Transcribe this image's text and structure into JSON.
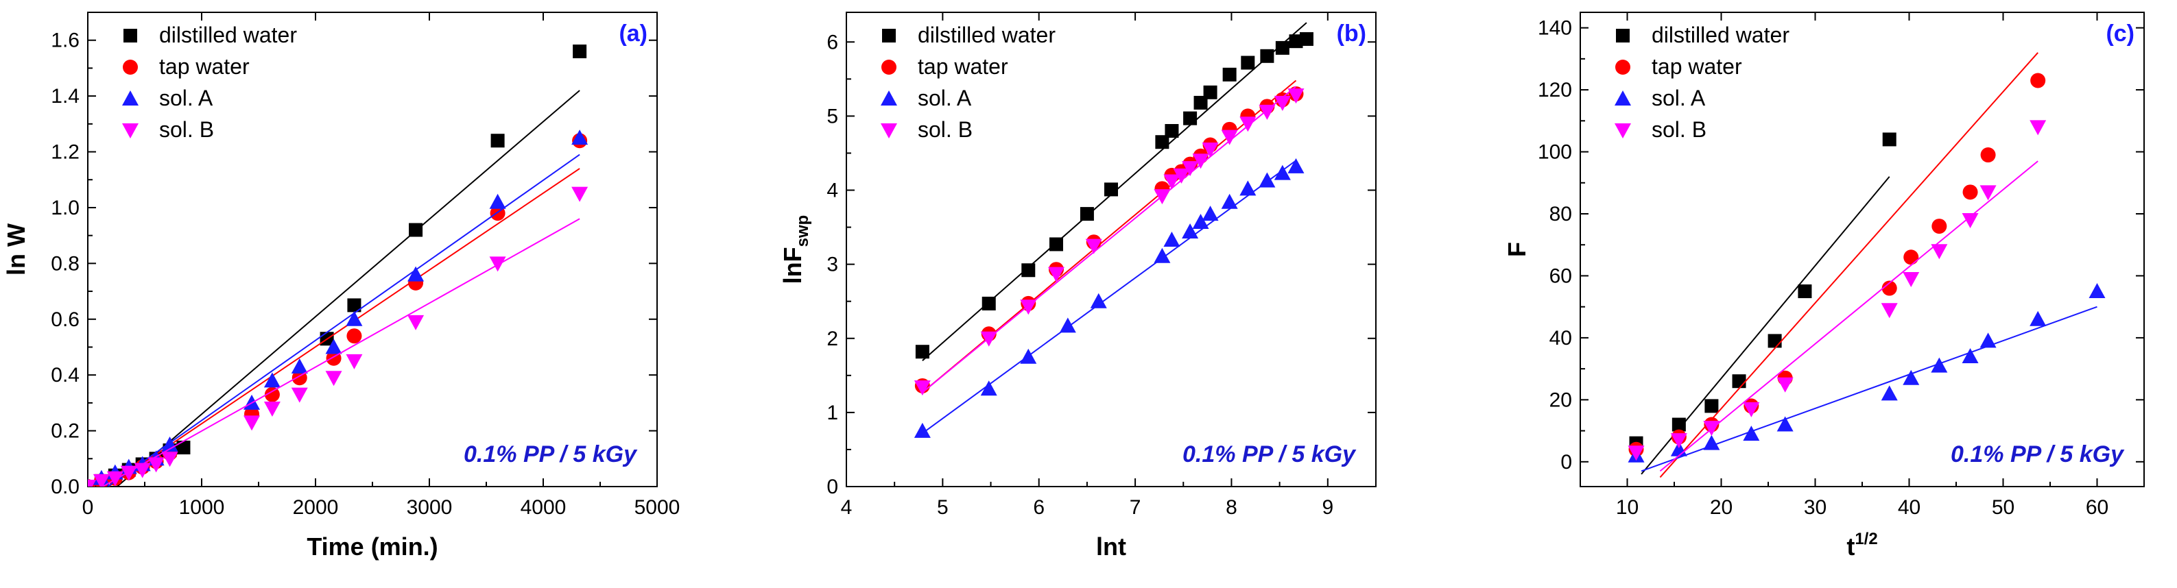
{
  "colors": {
    "black": "#000000",
    "red": "#ff0000",
    "blue": "#1a1aff",
    "magenta": "#ff00ff",
    "accent_text": "#1a1acc"
  },
  "chart_data": [
    {
      "type": "scatter",
      "panel_label": "(a)",
      "xlabel": "Time (min.)",
      "ylabel": "ln W",
      "xlim": [
        0,
        5000
      ],
      "ylim": [
        0,
        1.7
      ],
      "xticks": [
        0,
        1000,
        2000,
        3000,
        4000,
        5000
      ],
      "yticks": [
        0.0,
        0.2,
        0.4,
        0.6,
        0.8,
        1.0,
        1.2,
        1.4,
        1.6
      ],
      "ytick_labels": [
        "0.0",
        "0.2",
        "0.4",
        "0.6",
        "0.8",
        "1.0",
        "1.2",
        "1.4",
        "1.6"
      ],
      "legend_position": "top-left",
      "annotation": "0.1% PP / 5 kGy",
      "series": [
        {
          "name": "dilstilled water",
          "marker": "square",
          "color": "#000000",
          "points": [
            [
              0,
              0
            ],
            [
              120,
              0.02
            ],
            [
              240,
              0.04
            ],
            [
              360,
              0.06
            ],
            [
              480,
              0.08
            ],
            [
              600,
              0.1
            ],
            [
              720,
              0.13
            ],
            [
              840,
              0.14
            ],
            [
              2100,
              0.53
            ],
            [
              2340,
              0.65
            ],
            [
              2880,
              0.92
            ],
            [
              3600,
              1.24
            ],
            [
              4320,
              1.56
            ]
          ],
          "fit": [
            [
              0,
              -0.09
            ],
            [
              4320,
              1.42
            ]
          ]
        },
        {
          "name": "tap water",
          "marker": "circle",
          "color": "#ff0000",
          "points": [
            [
              0,
              0
            ],
            [
              120,
              0.02
            ],
            [
              240,
              0.03
            ],
            [
              360,
              0.05
            ],
            [
              480,
              0.07
            ],
            [
              600,
              0.09
            ],
            [
              720,
              0.12
            ],
            [
              1440,
              0.26
            ],
            [
              1620,
              0.33
            ],
            [
              1860,
              0.39
            ],
            [
              2160,
              0.46
            ],
            [
              2340,
              0.54
            ],
            [
              2880,
              0.73
            ],
            [
              3600,
              0.98
            ],
            [
              4320,
              1.24
            ]
          ],
          "fit": [
            [
              0,
              -0.05
            ],
            [
              4320,
              1.14
            ]
          ]
        },
        {
          "name": "sol. A",
          "marker": "triangle-up",
          "color": "#1a1aff",
          "points": [
            [
              0,
              0
            ],
            [
              120,
              0.03
            ],
            [
              240,
              0.05
            ],
            [
              360,
              0.07
            ],
            [
              480,
              0.08
            ],
            [
              600,
              0.1
            ],
            [
              720,
              0.15
            ],
            [
              1440,
              0.3
            ],
            [
              1620,
              0.38
            ],
            [
              1860,
              0.43
            ],
            [
              2160,
              0.5
            ],
            [
              2340,
              0.6
            ],
            [
              2880,
              0.76
            ],
            [
              3600,
              1.02
            ],
            [
              4320,
              1.25
            ]
          ],
          "fit": [
            [
              0,
              -0.05
            ],
            [
              4320,
              1.19
            ]
          ]
        },
        {
          "name": "sol. B",
          "marker": "triangle-down",
          "color": "#ff00ff",
          "points": [
            [
              0,
              0
            ],
            [
              120,
              0.02
            ],
            [
              240,
              0.03
            ],
            [
              360,
              0.05
            ],
            [
              480,
              0.06
            ],
            [
              600,
              0.08
            ],
            [
              720,
              0.1
            ],
            [
              1440,
              0.23
            ],
            [
              1620,
              0.28
            ],
            [
              1860,
              0.33
            ],
            [
              2160,
              0.39
            ],
            [
              2340,
              0.45
            ],
            [
              2880,
              0.59
            ],
            [
              3600,
              0.8
            ],
            [
              4320,
              1.05
            ]
          ],
          "fit": [
            [
              0,
              -0.03
            ],
            [
              4320,
              0.96
            ]
          ]
        }
      ]
    },
    {
      "type": "scatter",
      "panel_label": "(b)",
      "xlabel": "lnt",
      "ylabel": "lnF",
      "ylabel_sub": "swp",
      "xlim": [
        4,
        9.5
      ],
      "ylim": [
        0,
        6.4
      ],
      "xticks": [
        4,
        5,
        6,
        7,
        8,
        9
      ],
      "yticks": [
        0,
        1,
        2,
        3,
        4,
        5,
        6
      ],
      "legend_position": "top-left",
      "annotation": "0.1% PP / 5 kGy",
      "series": [
        {
          "name": "dilstilled water",
          "marker": "square",
          "color": "#000000",
          "points": [
            [
              4.79,
              1.82
            ],
            [
              5.48,
              2.47
            ],
            [
              5.89,
              2.92
            ],
            [
              6.18,
              3.27
            ],
            [
              6.5,
              3.68
            ],
            [
              6.75,
              4.01
            ],
            [
              7.28,
              4.65
            ],
            [
              7.38,
              4.8
            ],
            [
              7.57,
              4.97
            ],
            [
              7.68,
              5.18
            ],
            [
              7.78,
              5.32
            ],
            [
              7.98,
              5.56
            ],
            [
              8.17,
              5.72
            ],
            [
              8.37,
              5.81
            ],
            [
              8.53,
              5.92
            ],
            [
              8.67,
              6.01
            ],
            [
              8.78,
              6.04
            ]
          ],
          "fit": [
            [
              4.79,
              1.7
            ],
            [
              8.78,
              6.26
            ]
          ]
        },
        {
          "name": "tap water",
          "marker": "circle",
          "color": "#ff0000",
          "points": [
            [
              4.79,
              1.36
            ],
            [
              5.48,
              2.06
            ],
            [
              5.89,
              2.47
            ],
            [
              6.18,
              2.93
            ],
            [
              6.57,
              3.3
            ],
            [
              7.28,
              4.02
            ],
            [
              7.38,
              4.2
            ],
            [
              7.48,
              4.25
            ],
            [
              7.57,
              4.35
            ],
            [
              7.68,
              4.46
            ],
            [
              7.78,
              4.61
            ],
            [
              7.98,
              4.82
            ],
            [
              8.17,
              5.0
            ],
            [
              8.37,
              5.13
            ],
            [
              8.53,
              5.22
            ],
            [
              8.67,
              5.3
            ]
          ],
          "fit": [
            [
              4.79,
              1.27
            ],
            [
              8.67,
              5.48
            ]
          ]
        },
        {
          "name": "sol. A",
          "marker": "triangle-up",
          "color": "#1a1aff",
          "points": [
            [
              4.79,
              0.75
            ],
            [
              5.48,
              1.32
            ],
            [
              5.89,
              1.75
            ],
            [
              6.3,
              2.17
            ],
            [
              6.62,
              2.5
            ],
            [
              7.28,
              3.11
            ],
            [
              7.38,
              3.33
            ],
            [
              7.57,
              3.44
            ],
            [
              7.68,
              3.57
            ],
            [
              7.78,
              3.68
            ],
            [
              7.98,
              3.84
            ],
            [
              8.17,
              4.02
            ],
            [
              8.37,
              4.13
            ],
            [
              8.53,
              4.23
            ],
            [
              8.67,
              4.32
            ]
          ],
          "fit": [
            [
              4.79,
              0.72
            ],
            [
              8.67,
              4.4
            ]
          ]
        },
        {
          "name": "sol. B",
          "marker": "triangle-down",
          "color": "#ff00ff",
          "points": [
            [
              4.79,
              1.34
            ],
            [
              5.48,
              2.0
            ],
            [
              5.89,
              2.43
            ],
            [
              6.18,
              2.87
            ],
            [
              6.57,
              3.25
            ],
            [
              7.28,
              3.92
            ],
            [
              7.38,
              4.12
            ],
            [
              7.48,
              4.2
            ],
            [
              7.57,
              4.3
            ],
            [
              7.68,
              4.4
            ],
            [
              7.78,
              4.55
            ],
            [
              7.98,
              4.72
            ],
            [
              8.17,
              4.9
            ],
            [
              8.37,
              5.06
            ],
            [
              8.53,
              5.18
            ],
            [
              8.67,
              5.28
            ]
          ],
          "fit": [
            [
              4.79,
              1.27
            ],
            [
              8.67,
              5.4
            ]
          ]
        }
      ]
    },
    {
      "type": "scatter",
      "panel_label": "(c)",
      "xlabel": "t",
      "xlabel_sup": "1/2",
      "ylabel": "F",
      "xlim": [
        5,
        65
      ],
      "ylim": [
        -8,
        145
      ],
      "xticks": [
        10,
        20,
        30,
        40,
        50,
        60
      ],
      "yticks": [
        0,
        20,
        40,
        60,
        80,
        100,
        120,
        140
      ],
      "legend_position": "top-left",
      "annotation": "0.1% PP / 5 kGy",
      "series": [
        {
          "name": "dilstilled water",
          "marker": "square",
          "color": "#000000",
          "points": [
            [
              10.95,
              6
            ],
            [
              15.5,
              12
            ],
            [
              18.97,
              18
            ],
            [
              21.9,
              26
            ],
            [
              25.7,
              39
            ],
            [
              28.9,
              55
            ],
            [
              37.9,
              104
            ]
          ],
          "fit": [
            [
              11.5,
              -4
            ],
            [
              37.9,
              92
            ]
          ]
        },
        {
          "name": "tap water",
          "marker": "circle",
          "color": "#ff0000",
          "points": [
            [
              10.95,
              4
            ],
            [
              15.5,
              8
            ],
            [
              18.97,
              12
            ],
            [
              23.2,
              18
            ],
            [
              26.8,
              27
            ],
            [
              37.9,
              56
            ],
            [
              40.2,
              66
            ],
            [
              43.2,
              76
            ],
            [
              46.5,
              87
            ],
            [
              48.4,
              99
            ],
            [
              53.7,
              123
            ]
          ],
          "fit": [
            [
              13.5,
              -5
            ],
            [
              53.7,
              132
            ]
          ]
        },
        {
          "name": "sol. A",
          "marker": "triangle-up",
          "color": "#1a1aff",
          "points": [
            [
              10.95,
              2
            ],
            [
              15.5,
              4
            ],
            [
              18.97,
              6
            ],
            [
              23.2,
              9
            ],
            [
              26.8,
              12
            ],
            [
              37.9,
              22
            ],
            [
              40.2,
              27
            ],
            [
              43.2,
              31
            ],
            [
              46.5,
              34
            ],
            [
              48.4,
              39
            ],
            [
              53.7,
              46
            ],
            [
              60,
              55
            ]
          ],
          "fit": [
            [
              11.5,
              -3
            ],
            [
              60,
              50
            ]
          ]
        },
        {
          "name": "sol. B",
          "marker": "triangle-down",
          "color": "#ff00ff",
          "points": [
            [
              10.95,
              3
            ],
            [
              15.5,
              7
            ],
            [
              18.97,
              11
            ],
            [
              23.2,
              17
            ],
            [
              26.8,
              25
            ],
            [
              37.9,
              49
            ],
            [
              40.2,
              59
            ],
            [
              43.2,
              68
            ],
            [
              46.5,
              78
            ],
            [
              48.4,
              87
            ],
            [
              53.7,
              108
            ]
          ],
          "fit": [
            [
              13.5,
              -3
            ],
            [
              53.7,
              97
            ]
          ]
        }
      ]
    }
  ]
}
